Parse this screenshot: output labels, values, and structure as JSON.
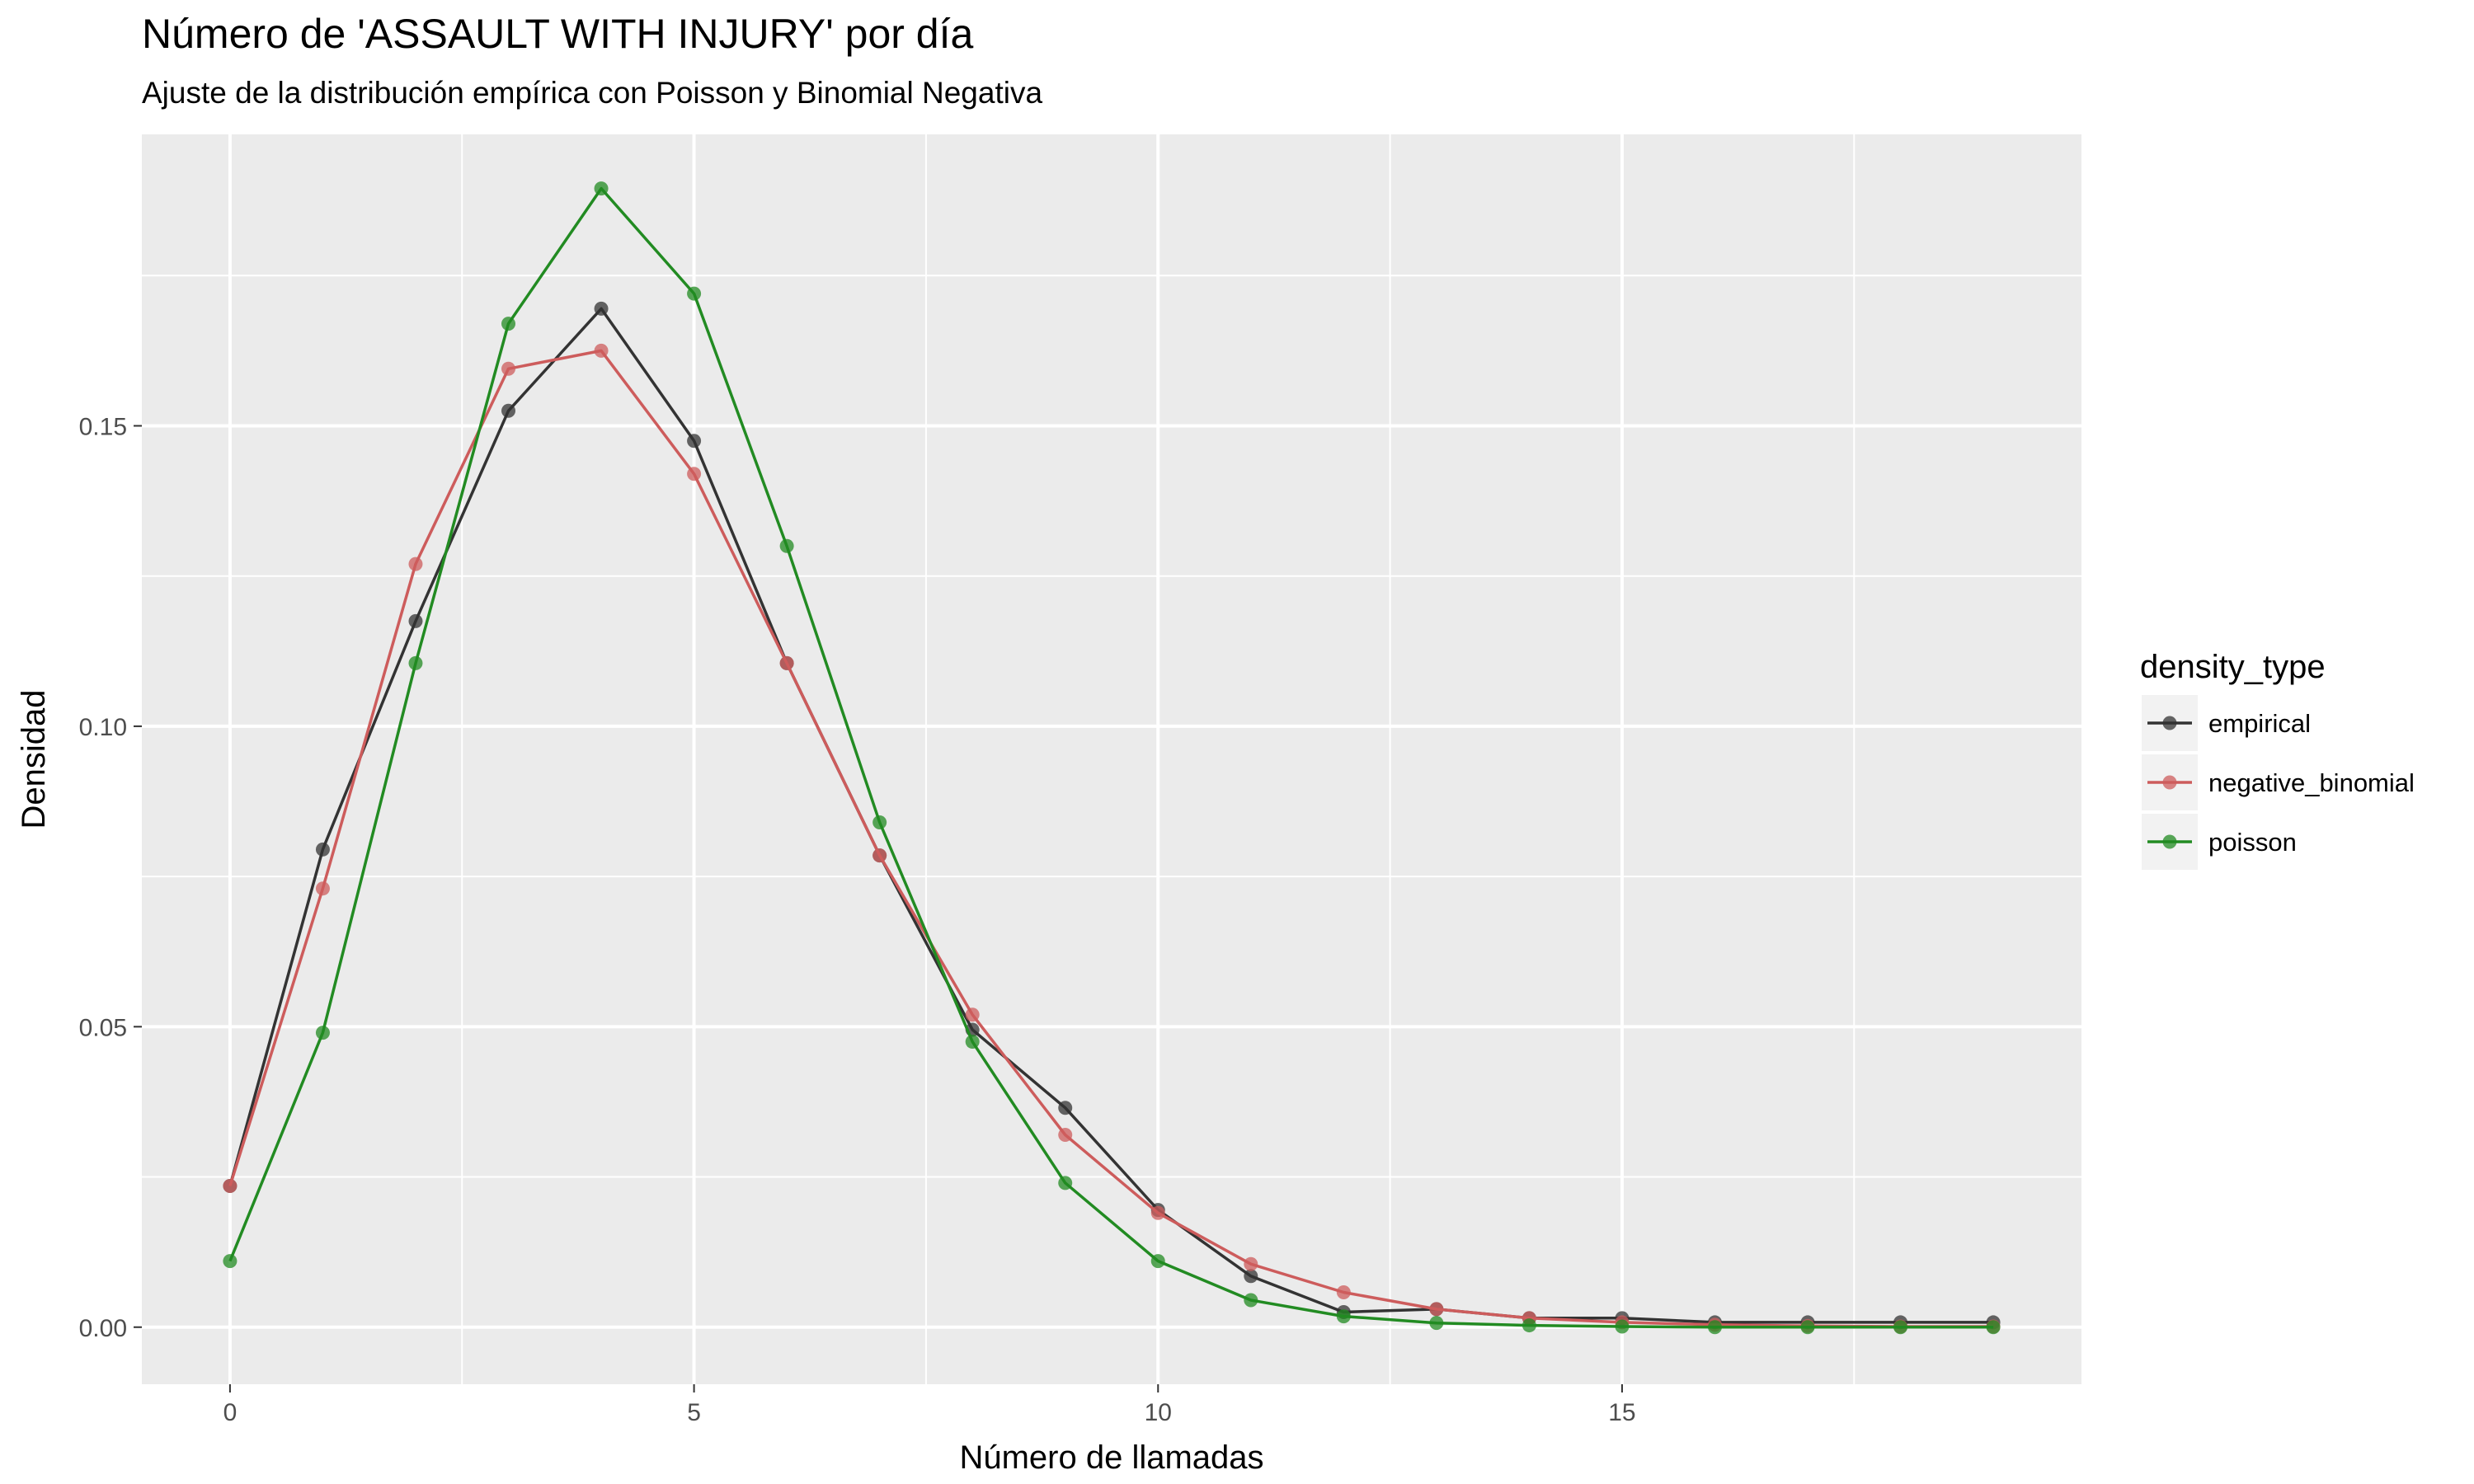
{
  "chart_data": {
    "type": "line",
    "title": "Número de 'ASSAULT WITH INJURY' por día",
    "subtitle": "Ajuste de la distribución empírica con Poisson y Binomial Negativa",
    "xlabel": "Número de llamadas",
    "ylabel": "Densidad",
    "xlim": [
      -0.95,
      19.95
    ],
    "ylim": [
      -0.0095,
      0.1985
    ],
    "x_ticks": [
      0,
      5,
      10,
      15
    ],
    "x_tick_labels": [
      "0",
      "5",
      "10",
      "15"
    ],
    "y_ticks": [
      0.0,
      0.05,
      0.1,
      0.15
    ],
    "y_tick_labels": [
      "0.00",
      "0.05",
      "0.10",
      "0.15"
    ],
    "grid": true,
    "markers": true,
    "legend": {
      "title": "density_type",
      "position": "right"
    },
    "x": [
      0,
      1,
      2,
      3,
      4,
      5,
      6,
      7,
      8,
      9,
      10,
      11,
      12,
      13,
      14,
      15,
      16,
      17,
      18,
      19
    ],
    "series": [
      {
        "name": "empirical",
        "color": "#333333",
        "values": [
          0.0235,
          0.0795,
          0.1175,
          0.1525,
          0.1695,
          0.1475,
          0.1105,
          0.0785,
          0.0495,
          0.0365,
          0.0195,
          0.0085,
          0.0025,
          0.003,
          0.0015,
          0.0015,
          0.0008,
          0.0008,
          0.0008,
          0.0008
        ]
      },
      {
        "name": "negative_binomial",
        "color": "#cd5c5c",
        "values": [
          0.0235,
          0.073,
          0.127,
          0.1595,
          0.1625,
          0.142,
          0.1105,
          0.0785,
          0.052,
          0.032,
          0.019,
          0.0105,
          0.0058,
          0.003,
          0.0015,
          0.0008,
          0.0004,
          0.0002,
          0.0001,
          0.0001
        ]
      },
      {
        "name": "poisson",
        "color": "#228b22",
        "values": [
          0.011,
          0.049,
          0.1105,
          0.167,
          0.1895,
          0.172,
          0.13,
          0.084,
          0.0475,
          0.024,
          0.011,
          0.0045,
          0.0018,
          0.0007,
          0.0003,
          0.0001,
          0.0,
          0.0,
          0.0,
          0.0
        ]
      }
    ]
  }
}
